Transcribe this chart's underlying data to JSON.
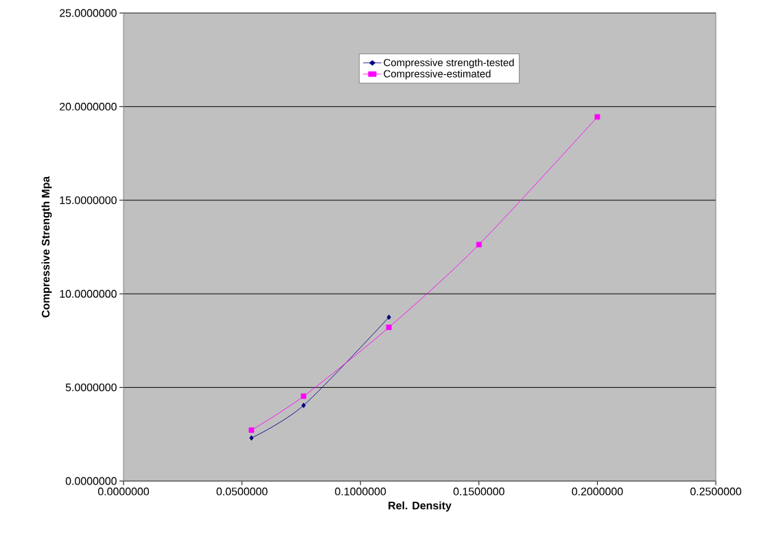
{
  "chart_data": {
    "type": "line",
    "xlabel": "Rel. Density",
    "ylabel": "Compressive Strength Mpa",
    "xlim": [
      0,
      0.25
    ],
    "ylim": [
      0,
      25
    ],
    "xticks": [
      {
        "value": 0,
        "label": "0.0000000"
      },
      {
        "value": 0.05,
        "label": "0.0500000"
      },
      {
        "value": 0.1,
        "label": "0.1000000"
      },
      {
        "value": 0.15,
        "label": "0.1500000"
      },
      {
        "value": 0.2,
        "label": "0.2000000"
      },
      {
        "value": 0.25,
        "label": "0.2500000"
      }
    ],
    "yticks": [
      {
        "value": 0,
        "label": "0.0000000"
      },
      {
        "value": 5,
        "label": "5.0000000"
      },
      {
        "value": 10,
        "label": "10.0000000"
      },
      {
        "value": 15,
        "label": "15.0000000"
      },
      {
        "value": 20,
        "label": "20.0000000"
      },
      {
        "value": 25,
        "label": "25.0000000"
      }
    ],
    "grid": "y",
    "legend": "top",
    "series": [
      {
        "name": "Compressive strength-tested",
        "color": "#000080",
        "marker": "diamond",
        "x": [
          0.054,
          0.076,
          0.112
        ],
        "values": [
          2.3,
          4.04,
          8.75
        ]
      },
      {
        "name": "Compressive-estimated",
        "color": "#ff00ff",
        "marker": "square",
        "x": [
          0.054,
          0.076,
          0.112,
          0.15,
          0.2
        ],
        "values": [
          2.72,
          4.53,
          8.21,
          12.63,
          19.45
        ]
      }
    ]
  }
}
